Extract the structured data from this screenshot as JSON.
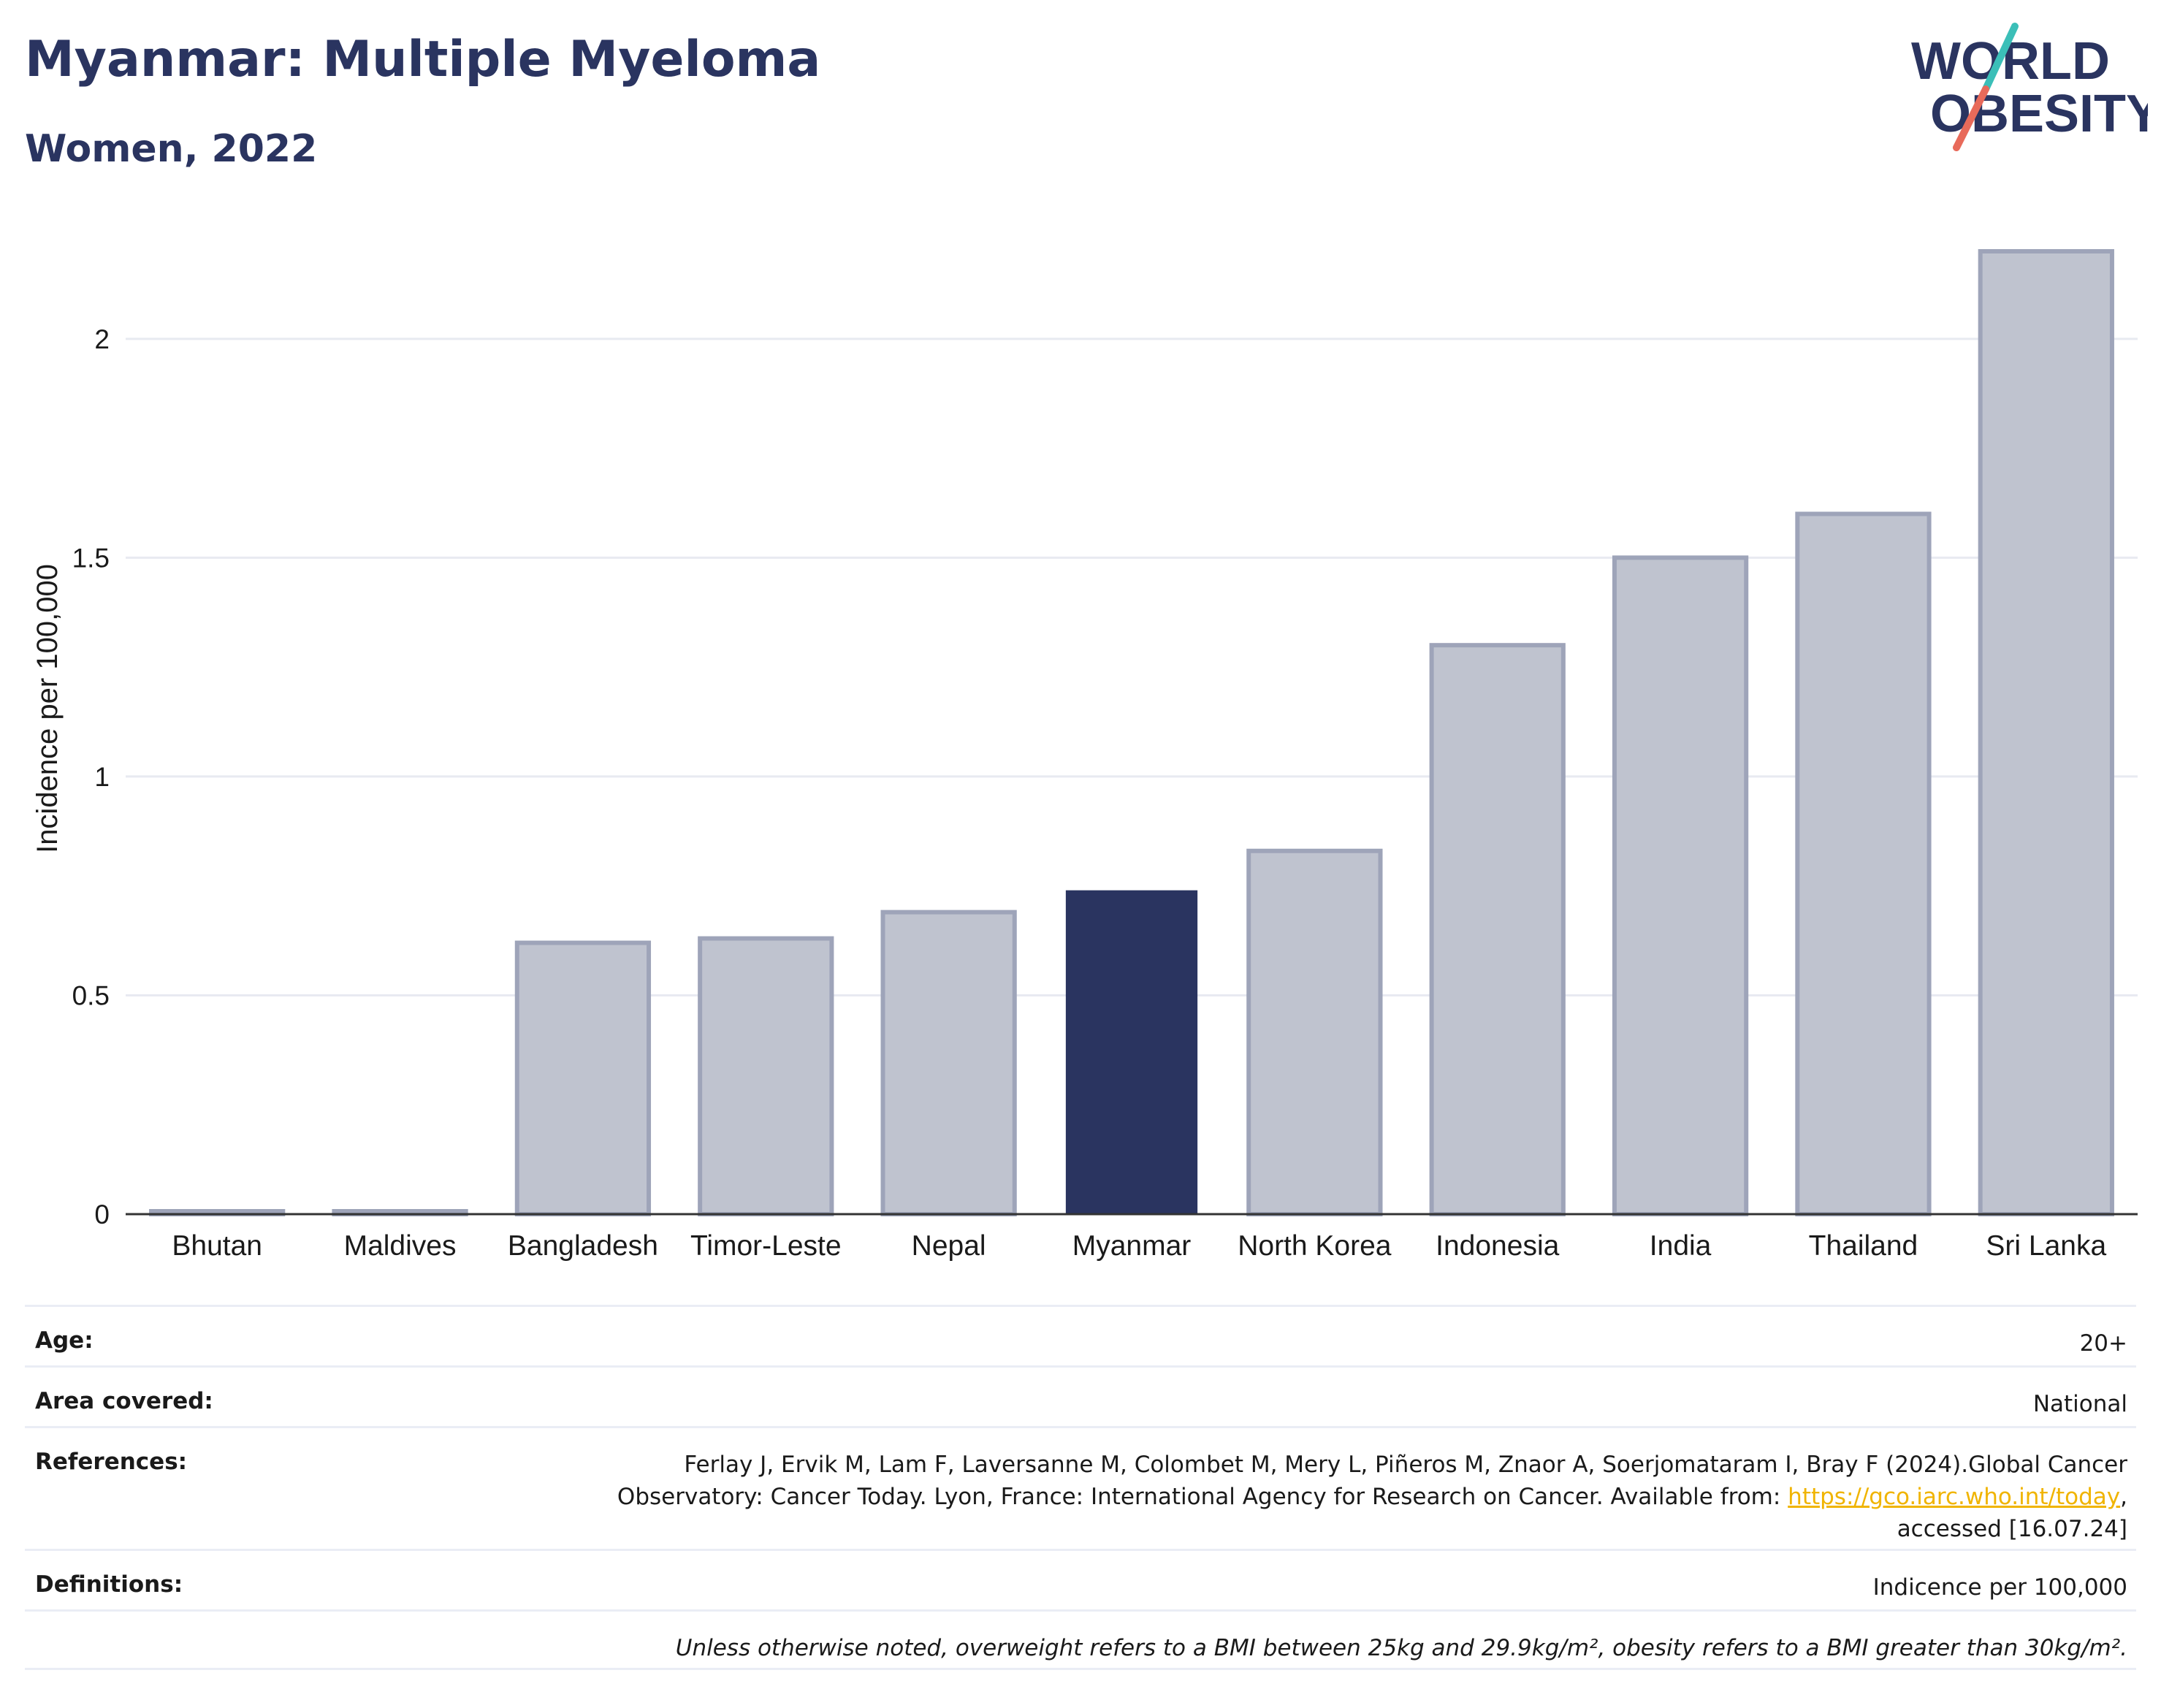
{
  "header": {
    "title": "Myanmar: Multiple Myeloma",
    "subtitle": "Women, 2022"
  },
  "logo": {
    "line1": "WORLD",
    "line2": "OBESITY"
  },
  "colors": {
    "highlight": "#2a3460",
    "muted_fill": "#bfc3cf",
    "muted_stroke": "#9ea4b9",
    "grid": "#e8eaf1",
    "axis": "#333333",
    "logo_teal": "#3bbfb8",
    "logo_coral": "#e86a5a",
    "link": "#f0b400"
  },
  "chart_data": {
    "type": "bar",
    "categories": [
      "Bhutan",
      "Maldives",
      "Bangladesh",
      "Timor-Leste",
      "Nepal",
      "Myanmar",
      "North Korea",
      "Indonesia",
      "India",
      "Thailand",
      "Sri Lanka"
    ],
    "values": [
      0,
      0,
      0.62,
      0.63,
      0.69,
      0.74,
      0.83,
      1.3,
      1.5,
      1.6,
      2.2
    ],
    "highlight": "Myanmar",
    "ylabel": "Incidence per 100,000",
    "xlabel": "",
    "ylim": [
      0,
      2.2
    ],
    "yticks": [
      0,
      0.5,
      1,
      1.5,
      2
    ],
    "ytick_labels": [
      "0",
      "0.5",
      "1",
      "1.5",
      "2"
    ],
    "grid": true
  },
  "info": {
    "age_label": "Age:",
    "age_value": "20+",
    "area_label": "Area covered:",
    "area_value": "National",
    "references_label": "References:",
    "references_text_1": "Ferlay J, Ervik M, Lam F, Laversanne M, Colombet M, Mery L, Piñeros M, Znaor A, Soerjomataram I, Bray F (2024).Global Cancer",
    "references_text_2": "Observatory: Cancer Today. Lyon, France: International Agency for Research on Cancer. Available from: ",
    "references_link": "https://gco.iarc.who.int/today",
    "references_text_3": ",",
    "references_text_4": "accessed [16.07.24]",
    "definitions_label": "Definitions:",
    "definitions_value": "Indicence per 100,000",
    "note": "Unless otherwise noted, overweight refers to a BMI between 25kg and 29.9kg/m², obesity refers to a BMI greater than 30kg/m²."
  }
}
